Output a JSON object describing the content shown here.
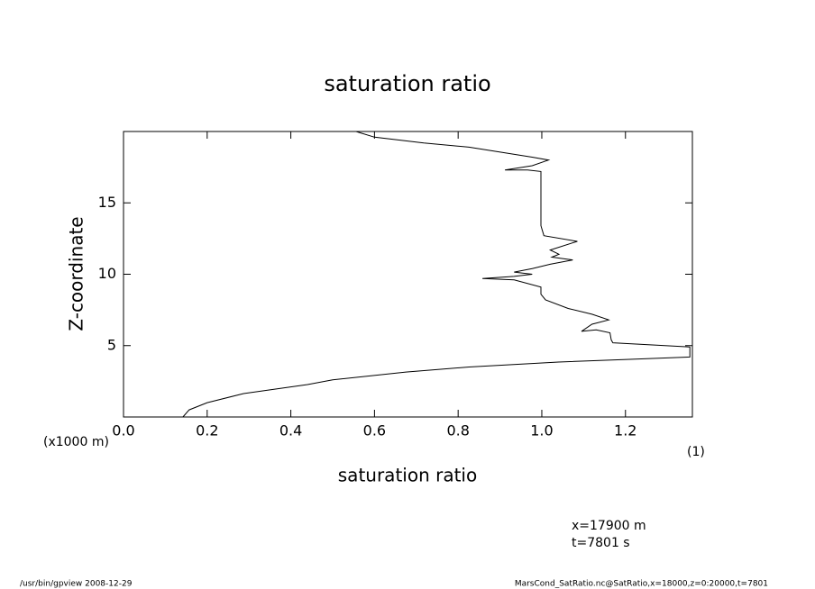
{
  "chart_data": {
    "type": "line",
    "title": "saturation ratio",
    "x_label": "saturation ratio",
    "y_label": "Z-coordinate",
    "y_unit": "(x1000 m)",
    "x_unit": "(1)",
    "annotations": [
      "x=17900 m",
      "t=7801 s"
    ],
    "footer_left": "/usr/bin/gpview   2008-12-29",
    "footer_right": "MarsCond_SatRatio.nc@SatRatio,x=18000,z=0:20000,t=7801",
    "color": "#000000",
    "x": [
      0.142,
      0.157,
      0.2,
      0.287,
      0.44,
      0.5,
      0.675,
      0.826,
      1.04,
      1.21,
      1.354,
      1.354,
      1.17,
      1.166,
      1.163,
      1.13,
      1.095,
      1.12,
      1.16,
      1.12,
      1.063,
      1.009,
      0.998,
      0.998,
      0.934,
      0.858,
      0.934,
      0.977,
      0.934,
      0.977,
      1.02,
      1.074,
      1.024,
      1.041,
      1.02,
      1.085,
      1.005,
      0.998,
      0.998,
      0.966,
      0.912,
      0.977,
      1.016,
      0.977,
      0.826,
      0.718,
      0.6,
      0.567,
      0.556
    ],
    "values": [
      0,
      0.5,
      1.0,
      1.64,
      2.27,
      2.6,
      3.15,
      3.5,
      3.85,
      4.04,
      4.2,
      4.9,
      5.2,
      5.4,
      5.9,
      6.1,
      6.0,
      6.5,
      6.8,
      7.2,
      7.6,
      8.2,
      8.6,
      9.1,
      9.6,
      9.7,
      9.85,
      10.0,
      10.15,
      10.4,
      10.7,
      11.0,
      11.2,
      11.4,
      11.7,
      12.3,
      12.7,
      13.4,
      17.2,
      17.3,
      17.3,
      17.6,
      18.0,
      18.2,
      18.9,
      19.2,
      19.6,
      19.9,
      20.0
    ],
    "xlim": [
      0,
      1.36
    ],
    "ylim": [
      0,
      20
    ],
    "xticks": [
      {
        "value": 0,
        "label": "0.0"
      },
      0.2,
      0.4,
      0.6,
      0.8,
      {
        "value": 1,
        "label": "1.0"
      },
      1.2
    ],
    "yticks": [
      5,
      10,
      15
    ]
  }
}
